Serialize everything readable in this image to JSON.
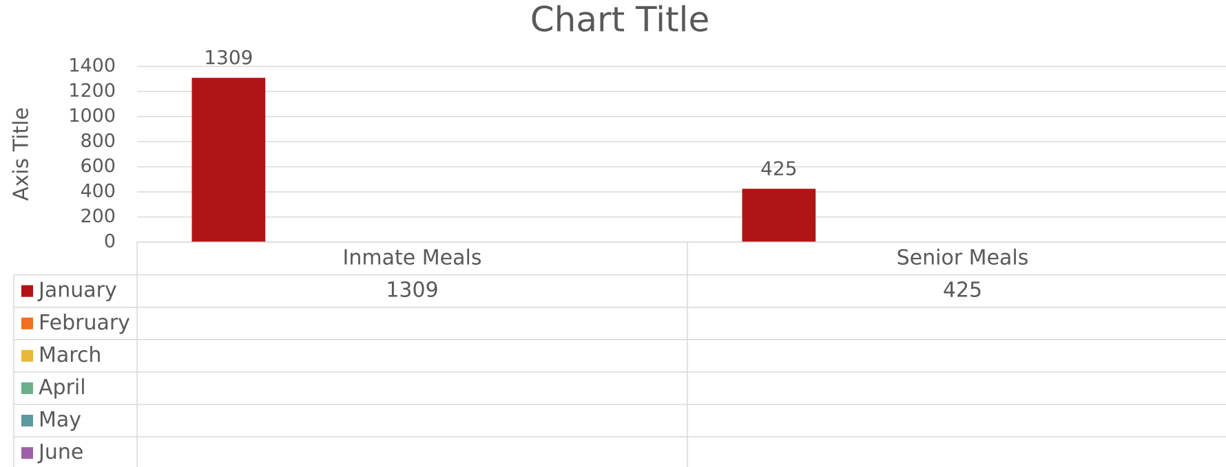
{
  "chart_data": {
    "type": "bar",
    "title": "Chart Title",
    "y_axis_label": "Axis Title",
    "categories": [
      "Inmate Meals",
      "Senior Meals"
    ],
    "series": [
      {
        "name": "January",
        "color": "#b01515",
        "values": [
          1309,
          425
        ]
      },
      {
        "name": "February",
        "color": "#f07020",
        "values": [
          null,
          null
        ]
      },
      {
        "name": "March",
        "color": "#e8b838",
        "values": [
          null,
          null
        ]
      },
      {
        "name": "April",
        "color": "#6ab08a",
        "values": [
          null,
          null
        ]
      },
      {
        "name": "May",
        "color": "#5a9aa0",
        "values": [
          null,
          null
        ]
      },
      {
        "name": "June",
        "color": "#a060a8",
        "values": [
          null,
          null
        ]
      }
    ],
    "ylim": [
      0,
      1400
    ],
    "yticks": [
      0,
      200,
      400,
      600,
      800,
      1000,
      1200,
      1400
    ],
    "grid": true,
    "data_table": true
  }
}
